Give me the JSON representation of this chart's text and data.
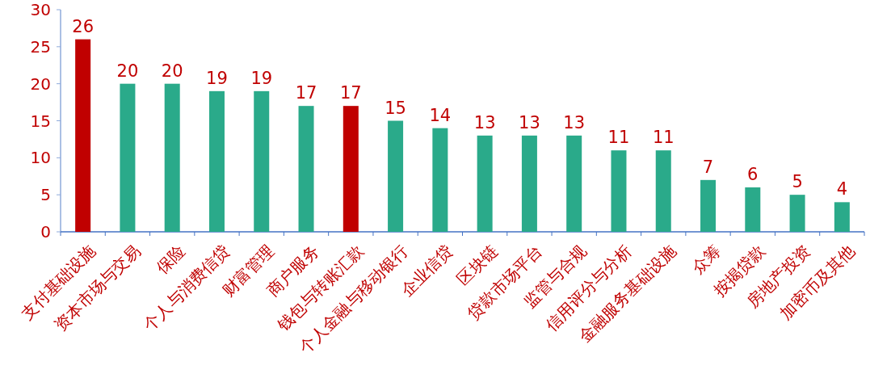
{
  "chart_data": {
    "type": "bar",
    "categories": [
      "支付基础设施",
      "资本市场与交易",
      "保险",
      "个人与消费信贷",
      "财富管理",
      "商户服务",
      "钱包与转账汇款",
      "个人金融与移动银行",
      "企业信贷",
      "区块链",
      "贷款市场平台",
      "监管与合规",
      "信用评分与分析",
      "金融服务基础设施",
      "众筹",
      "按揭贷款",
      "房地产投资",
      "加密币及其他"
    ],
    "values": [
      26,
      20,
      20,
      19,
      19,
      17,
      17,
      15,
      14,
      13,
      13,
      13,
      11,
      11,
      7,
      6,
      5,
      4
    ],
    "colors": [
      "#c00000",
      "#2aaa8a",
      "#2aaa8a",
      "#2aaa8a",
      "#2aaa8a",
      "#2aaa8a",
      "#c00000",
      "#2aaa8a",
      "#2aaa8a",
      "#2aaa8a",
      "#2aaa8a",
      "#2aaa8a",
      "#2aaa8a",
      "#2aaa8a",
      "#2aaa8a",
      "#2aaa8a",
      "#2aaa8a",
      "#2aaa8a"
    ],
    "ylim": [
      0,
      30
    ],
    "yticks": [
      0,
      5,
      10,
      15,
      20,
      25,
      30
    ],
    "data_labels": true
  }
}
